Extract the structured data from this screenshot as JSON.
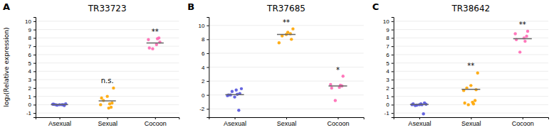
{
  "chart_data": [
    {
      "type": "strip",
      "panel_label": "A",
      "title": "TR33723",
      "ylabel": "log₂(Relative expression)",
      "categories": [
        "Asexual",
        "Sexual",
        "Cocoon"
      ],
      "colors": [
        "#5555dd",
        "#FFA500",
        "#FF69B4"
      ],
      "values": [
        [
          0.05,
          0.0,
          -0.05,
          0.1,
          0.0,
          0.0,
          -0.1,
          0.05,
          0.0
        ],
        [
          2.0,
          1.0,
          0.5,
          0.2,
          0.0,
          -0.3,
          -0.4,
          0.8,
          0.1
        ],
        [
          7.5,
          7.8,
          8.0,
          7.2,
          6.8,
          7.9,
          6.7
        ]
      ],
      "medians": [
        0.02,
        0.45,
        7.4
      ],
      "annotations": [
        {
          "text": "n.s.",
          "x": "Sexual",
          "y": 2.5
        },
        {
          "text": "**",
          "x": "Cocoon",
          "y": 8.4
        }
      ],
      "ylim": [
        -1.5,
        10.5
      ],
      "yticks": [
        -1,
        0,
        1,
        2,
        3,
        4,
        5,
        6,
        7,
        8,
        9,
        10
      ],
      "grid": true
    },
    {
      "type": "strip",
      "panel_label": "B",
      "title": "TR37685",
      "categories": [
        "Asexual",
        "Sexual",
        "Cocoon"
      ],
      "colors": [
        "#5555dd",
        "#FFA500",
        "#FF69B4"
      ],
      "values": [
        [
          0.0,
          0.1,
          0.5,
          0.9,
          -0.3,
          0.0,
          0.2,
          -0.1,
          -2.2,
          0.7
        ],
        [
          9.5,
          8.7,
          8.5,
          8.0,
          7.5,
          8.8,
          9.0
        ],
        [
          2.7,
          1.5,
          1.3,
          1.1,
          1.0,
          1.4,
          -0.8
        ]
      ],
      "medians": [
        0.05,
        8.7,
        1.3
      ],
      "annotations": [
        {
          "text": "**",
          "x": "Sexual",
          "y": 10.0
        },
        {
          "text": "*",
          "x": "Cocoon",
          "y": 3.1
        }
      ],
      "ylim": [
        -3.2,
        11.2
      ],
      "yticks": [
        -2,
        0,
        2,
        4,
        6,
        8,
        10
      ],
      "grid": true
    },
    {
      "type": "strip",
      "panel_label": "C",
      "title": "TR38642",
      "categories": [
        "Asexual",
        "Sexual",
        "Cocoon"
      ],
      "colors": [
        "#5555dd",
        "#FFA500",
        "#FF69B4"
      ],
      "values": [
        [
          0.1,
          0.0,
          -0.05,
          0.05,
          0.0,
          -0.1,
          0.2,
          0.0,
          -1.1,
          0.1
        ],
        [
          3.8,
          2.3,
          2.0,
          1.8,
          1.7,
          0.5,
          0.3,
          0.2,
          0.1,
          0.0
        ],
        [
          8.8,
          8.5,
          8.2,
          8.0,
          7.8,
          7.6,
          6.3
        ]
      ],
      "medians": [
        0.03,
        1.85,
        7.9
      ],
      "annotations": [
        {
          "text": "**",
          "x": "Sexual",
          "y": 4.3
        },
        {
          "text": "**",
          "x": "Cocoon",
          "y": 9.2
        }
      ],
      "ylim": [
        -1.5,
        10.5
      ],
      "yticks": [
        -1,
        0,
        1,
        2,
        3,
        4,
        5,
        6,
        7,
        8,
        9,
        10
      ],
      "grid": true
    }
  ]
}
